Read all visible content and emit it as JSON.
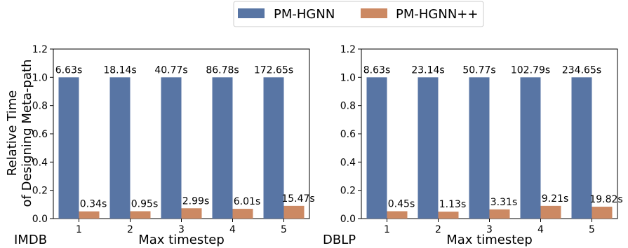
{
  "legend": {
    "entries": [
      {
        "label": "PM-HGNN",
        "color": "#5875a4"
      },
      {
        "label": "PM-HGNN++",
        "color": "#cc8963"
      }
    ]
  },
  "shared_ylabel_line1": "Relative Time",
  "shared_ylabel_line2": "of Designing Meta-path",
  "chart_data": [
    {
      "type": "bar",
      "panel_label": "IMDB",
      "xlabel": "Max timestep",
      "ylabel": "Relative Time of Designing Meta-path",
      "categories": [
        "1",
        "2",
        "3",
        "4",
        "5"
      ],
      "ylim": [
        0,
        1.2
      ],
      "yticks": [
        "0.0",
        "0.2",
        "0.4",
        "0.6",
        "0.8",
        "1.0",
        "1.2"
      ],
      "grid": false,
      "legend_position": "top-center",
      "series": [
        {
          "name": "PM-HGNN",
          "values": [
            1.0,
            1.0,
            1.0,
            1.0,
            1.0
          ],
          "labels": [
            "6.63s",
            "18.14s",
            "40.77s",
            "86.78s",
            "172.65s"
          ]
        },
        {
          "name": "PM-HGNN++",
          "values": [
            0.051,
            0.052,
            0.073,
            0.069,
            0.09
          ],
          "labels": [
            "0.34s",
            "0.95s",
            "2.99s",
            "6.01s",
            "15.47s"
          ]
        }
      ]
    },
    {
      "type": "bar",
      "panel_label": "DBLP",
      "xlabel": "Max timestep",
      "ylabel": "",
      "categories": [
        "1",
        "2",
        "3",
        "4",
        "5"
      ],
      "ylim": [
        0,
        1.2
      ],
      "yticks": [
        "0.0",
        "0.2",
        "0.4",
        "0.6",
        "0.8",
        "1.0",
        "1.2"
      ],
      "grid": false,
      "legend_position": "top-center",
      "series": [
        {
          "name": "PM-HGNN",
          "values": [
            1.0,
            1.0,
            1.0,
            1.0,
            1.0
          ],
          "labels": [
            "8.63s",
            "23.14s",
            "50.77s",
            "102.79s",
            "234.65s"
          ]
        },
        {
          "name": "PM-HGNN++",
          "values": [
            0.052,
            0.049,
            0.065,
            0.09,
            0.084
          ],
          "labels": [
            "0.45s",
            "1.13s",
            "3.31s",
            "9.21s",
            "19.82s"
          ]
        }
      ]
    }
  ]
}
